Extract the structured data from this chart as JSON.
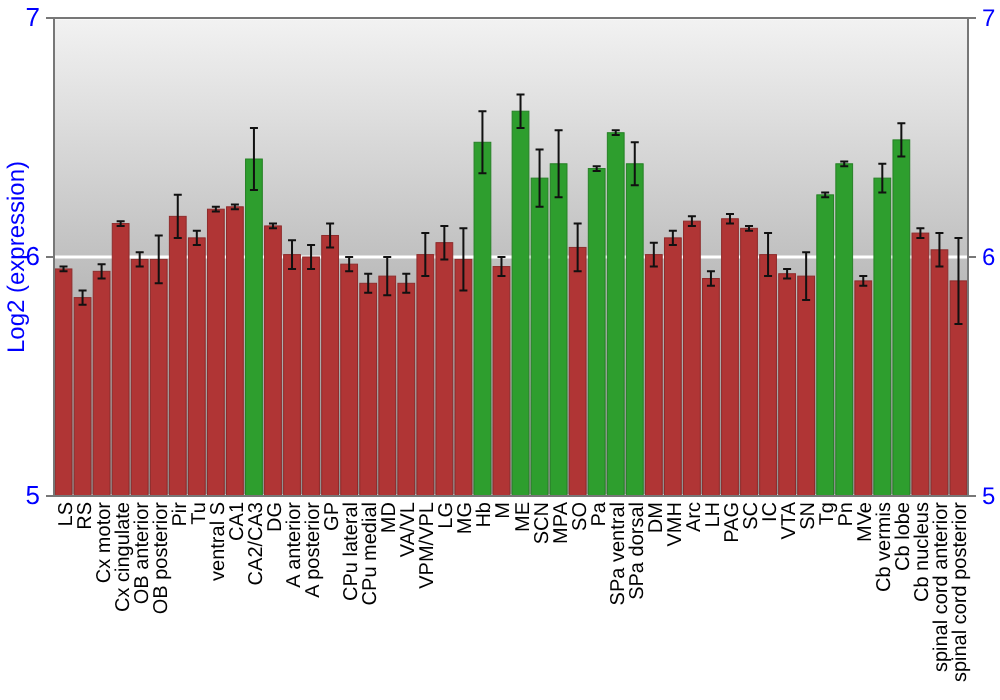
{
  "chart_data": {
    "type": "bar",
    "ylabel": "Log2 (expression)",
    "categories": [
      "LS",
      "RS",
      "Cx motor",
      "Cx cingulate",
      "OB anterior",
      "OB posterior",
      "Pir",
      "Tu",
      "ventral S",
      "CA1",
      "CA2/CA3",
      "DG",
      "A anterior",
      "A posterior",
      "GP",
      "CPu lateral",
      "CPu medial",
      "MD",
      "VA/VL",
      "VPM/VPL",
      "LG",
      "MG",
      "Hb",
      "M",
      "ME",
      "SCN",
      "MPA",
      "SO",
      "Pa",
      "SPa ventral",
      "SPa dorsal",
      "DM",
      "VMH",
      "Arc",
      "LH",
      "PAG",
      "SC",
      "IC",
      "VTA",
      "SN",
      "Tg",
      "Pn",
      "MVe",
      "Cb vermis",
      "Cb lobe",
      "Cb nucleus",
      "spinal cord anterior",
      "spinal cord posterior"
    ],
    "values": [
      5.95,
      5.83,
      5.94,
      6.14,
      5.99,
      5.99,
      6.17,
      6.08,
      6.2,
      6.21,
      6.41,
      6.13,
      6.01,
      6.0,
      6.09,
      5.97,
      5.89,
      5.92,
      5.89,
      6.01,
      6.06,
      5.99,
      6.48,
      5.96,
      6.61,
      6.33,
      6.39,
      6.04,
      6.37,
      6.52,
      6.39,
      6.01,
      6.08,
      6.15,
      5.91,
      6.16,
      6.12,
      6.01,
      5.93,
      5.92,
      6.26,
      6.39,
      5.9,
      6.33,
      6.49,
      6.1,
      6.03,
      5.9
    ],
    "errors": [
      0.01,
      0.03,
      0.03,
      0.01,
      0.03,
      0.1,
      0.09,
      0.03,
      0.01,
      0.01,
      0.13,
      0.01,
      0.06,
      0.05,
      0.05,
      0.03,
      0.04,
      0.08,
      0.04,
      0.09,
      0.07,
      0.13,
      0.13,
      0.04,
      0.07,
      0.12,
      0.14,
      0.1,
      0.01,
      0.01,
      0.09,
      0.05,
      0.03,
      0.02,
      0.03,
      0.02,
      0.01,
      0.09,
      0.02,
      0.1,
      0.01,
      0.01,
      0.02,
      0.06,
      0.07,
      0.02,
      0.07,
      0.18
    ],
    "colors": [
      "#b03535",
      "#b03535",
      "#b03535",
      "#b03535",
      "#b03535",
      "#b03535",
      "#b03535",
      "#b03535",
      "#b03535",
      "#b03535",
      "#2e9e2e",
      "#b03535",
      "#b03535",
      "#b03535",
      "#b03535",
      "#b03535",
      "#b03535",
      "#b03535",
      "#b03535",
      "#b03535",
      "#b03535",
      "#b03535",
      "#2e9e2e",
      "#b03535",
      "#2e9e2e",
      "#2e9e2e",
      "#2e9e2e",
      "#b03535",
      "#2e9e2e",
      "#2e9e2e",
      "#2e9e2e",
      "#b03535",
      "#b03535",
      "#b03535",
      "#b03535",
      "#b03535",
      "#b03535",
      "#b03535",
      "#b03535",
      "#b03535",
      "#2e9e2e",
      "#2e9e2e",
      "#b03535",
      "#2e9e2e",
      "#2e9e2e",
      "#b03535",
      "#b03535",
      "#b03535"
    ],
    "ylim": [
      5,
      7
    ],
    "yticks": [
      5,
      6,
      7
    ],
    "y2lim": [
      5,
      7
    ],
    "y2ticks": [
      5,
      6,
      7
    ],
    "grid": "y"
  }
}
